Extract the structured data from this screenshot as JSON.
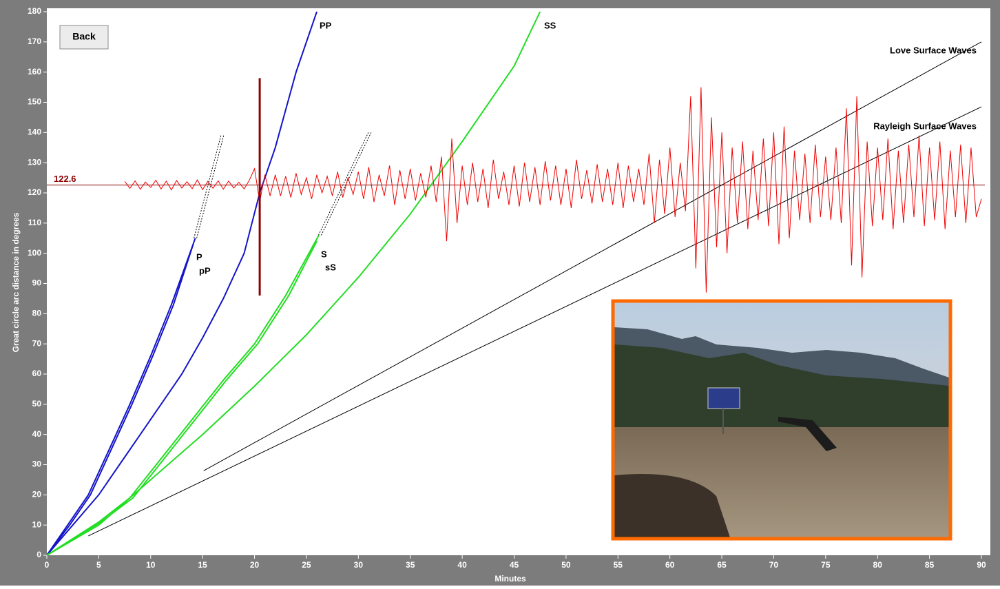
{
  "back_button": "Back",
  "chart_data": {
    "type": "line",
    "xlabel": "Minutes",
    "ylabel": "Great circle arc distance in degrees",
    "xlim": [
      0,
      90
    ],
    "ylim": [
      0,
      180
    ],
    "xticks": [
      0,
      5,
      10,
      15,
      20,
      25,
      30,
      35,
      40,
      45,
      50,
      55,
      60,
      65,
      70,
      75,
      80,
      85,
      90
    ],
    "yticks": [
      0,
      10,
      20,
      30,
      40,
      50,
      60,
      70,
      80,
      90,
      100,
      110,
      120,
      130,
      140,
      150,
      160,
      170,
      180
    ],
    "distance": 122.6,
    "cursor": {
      "x": 20.5,
      "y": [
        86,
        158
      ],
      "color": "#8b0000"
    },
    "series": [
      {
        "name": "P",
        "color": "#1414c8",
        "x": [
          0,
          2,
          4,
          6,
          8,
          10,
          12,
          14.3
        ],
        "values": [
          0,
          10,
          20,
          35,
          50,
          66,
          83,
          105
        ]
      },
      {
        "name": "pP",
        "color": "#1414c8",
        "x": [
          0,
          2.2,
          4.2,
          6.2,
          8.2,
          10.2,
          12.2,
          14.1
        ],
        "values": [
          0,
          10,
          20,
          35,
          50,
          66,
          83,
          103
        ]
      },
      {
        "name": "PP",
        "color": "#1414c8",
        "x": [
          0,
          2.5,
          5,
          7,
          9,
          11,
          13,
          15,
          17,
          19,
          20.5,
          22,
          24,
          26
        ],
        "values": [
          0,
          10,
          20,
          30,
          40,
          50,
          60,
          72,
          85,
          100,
          120,
          135,
          160,
          180
        ]
      },
      {
        "name": "S",
        "color": "#22dd22",
        "x": [
          0,
          5,
          8,
          11,
          14,
          17,
          20,
          23,
          26.2
        ],
        "values": [
          0,
          11,
          19,
          32,
          45,
          58,
          70,
          86,
          106
        ]
      },
      {
        "name": "sS",
        "color": "#22dd22",
        "x": [
          0,
          5.2,
          8.3,
          11.3,
          14.3,
          17.3,
          20.3,
          23.3,
          26
        ],
        "values": [
          0,
          11,
          19,
          32,
          45,
          58,
          70,
          86,
          104
        ]
      },
      {
        "name": "SS",
        "color": "#22dd22",
        "x": [
          0,
          5,
          10,
          15,
          20,
          25,
          30,
          35,
          40,
          45,
          47.5
        ],
        "values": [
          0,
          10,
          25,
          40,
          56,
          73,
          92,
          113,
          137,
          162,
          180
        ]
      },
      {
        "name": "Love Surface Waves",
        "color": "#000000",
        "x": [
          15.1,
          90
        ],
        "values": [
          28,
          170
        ]
      },
      {
        "name": "Rayleigh Surface Waves",
        "color": "#000000",
        "x": [
          4,
          90
        ],
        "values": [
          6.4,
          148.5
        ]
      },
      {
        "style": "dotted",
        "color": "#000000",
        "x": [
          14.3,
          16.9
        ],
        "values": [
          105,
          139
        ]
      },
      {
        "style": "dotted",
        "color": "#000000",
        "x": [
          26.3,
          31.1
        ],
        "values": [
          106,
          140
        ]
      },
      {
        "style": "trace",
        "color": "#ee0000",
        "x": [
          7.5,
          8,
          8.5,
          9,
          9.5,
          10,
          10.5,
          11,
          11.5,
          12,
          12.5,
          13,
          13.5,
          14,
          14.5,
          15,
          15.5,
          16,
          16.5,
          17,
          17.5,
          18,
          18.5,
          19,
          19.5,
          20,
          20.5,
          21,
          21.5,
          22,
          22.5,
          23,
          23.5,
          24,
          24.5,
          25,
          25.5,
          26,
          26.5,
          27,
          27.5,
          28,
          28.5,
          29,
          29.5,
          30,
          30.5,
          31,
          31.5,
          32,
          32.5,
          33,
          33.5,
          34,
          34.5,
          35,
          35.5,
          36,
          36.5,
          37,
          37.5,
          38,
          38.5,
          39,
          39.5,
          40,
          40.5,
          41,
          41.5,
          42,
          42.5,
          43,
          43.5,
          44,
          44.5,
          45,
          45.5,
          46,
          46.5,
          47,
          47.5,
          48,
          48.5,
          49,
          49.5,
          50,
          50.5,
          51,
          51.5,
          52,
          52.5,
          53,
          53.5,
          54,
          54.5,
          55,
          55.5,
          56,
          56.5,
          57,
          57.5,
          58,
          58.5,
          59,
          59.5,
          60,
          60.5,
          61,
          61.5,
          62,
          62.5,
          63,
          63.5,
          64,
          64.5,
          65,
          65.5,
          66,
          66.5,
          67,
          67.5,
          68,
          68.5,
          69,
          69.5,
          70,
          70.5,
          71,
          71.5,
          72,
          72.5,
          73,
          73.5,
          74,
          74.5,
          75,
          75.5,
          76,
          76.5,
          77,
          77.5,
          78,
          78.5,
          79,
          79.5,
          80,
          80.5,
          81,
          81.5,
          82,
          82.5,
          83,
          83.5,
          84,
          84.5,
          85,
          85.5,
          86,
          86.5,
          87,
          87.5,
          88,
          88.5,
          89,
          89.5,
          90
        ],
        "values": [
          123.8,
          121.5,
          124,
          121.2,
          123.6,
          121.8,
          124.2,
          121.3,
          123.9,
          121,
          124.1,
          121.6,
          123.7,
          121.4,
          124.3,
          121.1,
          123.8,
          121.5,
          124,
          121.2,
          123.9,
          121.6,
          123.5,
          121.3,
          124.2,
          128,
          117,
          126,
          119,
          126,
          119,
          125.5,
          118.5,
          126.5,
          119.5,
          125,
          118,
          126,
          120,
          125.5,
          119,
          127,
          118.5,
          125,
          119.5,
          127,
          118,
          128.5,
          117,
          126,
          119,
          129,
          116,
          127.5,
          118,
          128,
          117.5,
          126.5,
          118.5,
          129,
          117,
          132,
          104,
          138,
          110,
          129,
          116,
          130,
          117,
          128,
          115,
          131,
          118,
          127,
          116,
          129,
          115.5,
          130,
          117,
          128.5,
          116,
          130.5,
          117.5,
          129,
          116,
          128,
          115,
          131,
          118,
          127.5,
          116.5,
          129.5,
          117,
          128,
          116,
          130,
          115,
          129,
          117,
          128,
          116,
          133,
          110,
          131,
          113,
          135,
          112,
          130,
          114,
          152,
          95,
          155,
          87,
          145,
          102,
          140,
          100,
          135,
          110,
          137,
          108,
          134,
          111,
          138,
          109,
          140,
          103,
          142,
          105,
          134,
          111,
          133,
          110,
          136,
          112,
          132,
          111,
          135,
          110,
          148,
          96,
          152,
          92,
          137,
          109,
          135,
          111,
          138,
          108,
          134,
          110,
          136,
          112,
          139,
          109,
          135,
          111,
          137,
          108,
          134,
          112,
          136,
          110,
          135,
          112,
          118
        ]
      }
    ]
  }
}
